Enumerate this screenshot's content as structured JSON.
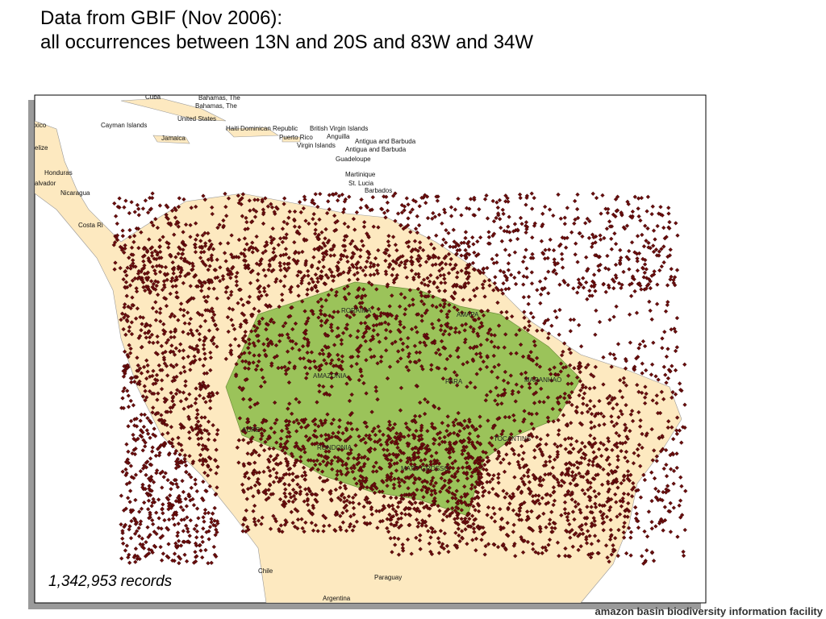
{
  "header": {
    "title_line1": "Data from GBIF (Nov 2006):",
    "title_line2": "all occurrences between 13N and 20S and 83W and 34W"
  },
  "map": {
    "labels": [
      "Cuba",
      "Bahamas, The",
      "Bahamas, The",
      "United States",
      "Cayman Islands",
      "Haiti",
      "Dominican Republic",
      "British Virgin Islands",
      "Puerto Rico",
      "Anguilla",
      "Jamaica",
      "Virgin Islands",
      "Antigua and Barbuda",
      "Antigua and Barbuda",
      "Guadeloupe",
      "Martinique",
      "St. Lucia",
      "Barbados",
      "xico",
      "elize",
      "Honduras",
      "alvador",
      "Nicaragua",
      "Costa Ri",
      "Chile",
      "Paraguay",
      "Argentina"
    ],
    "states": [
      "RORAIMA",
      "AMAPA",
      "AMAZONIA",
      "PARA",
      "MARANHAO",
      "ACRE",
      "RONDONIA",
      "TOCANTINS",
      "MATO GROSSO"
    ],
    "records": "1,342,953 records"
  },
  "footer": "amazon basin biodiversity information facility"
}
